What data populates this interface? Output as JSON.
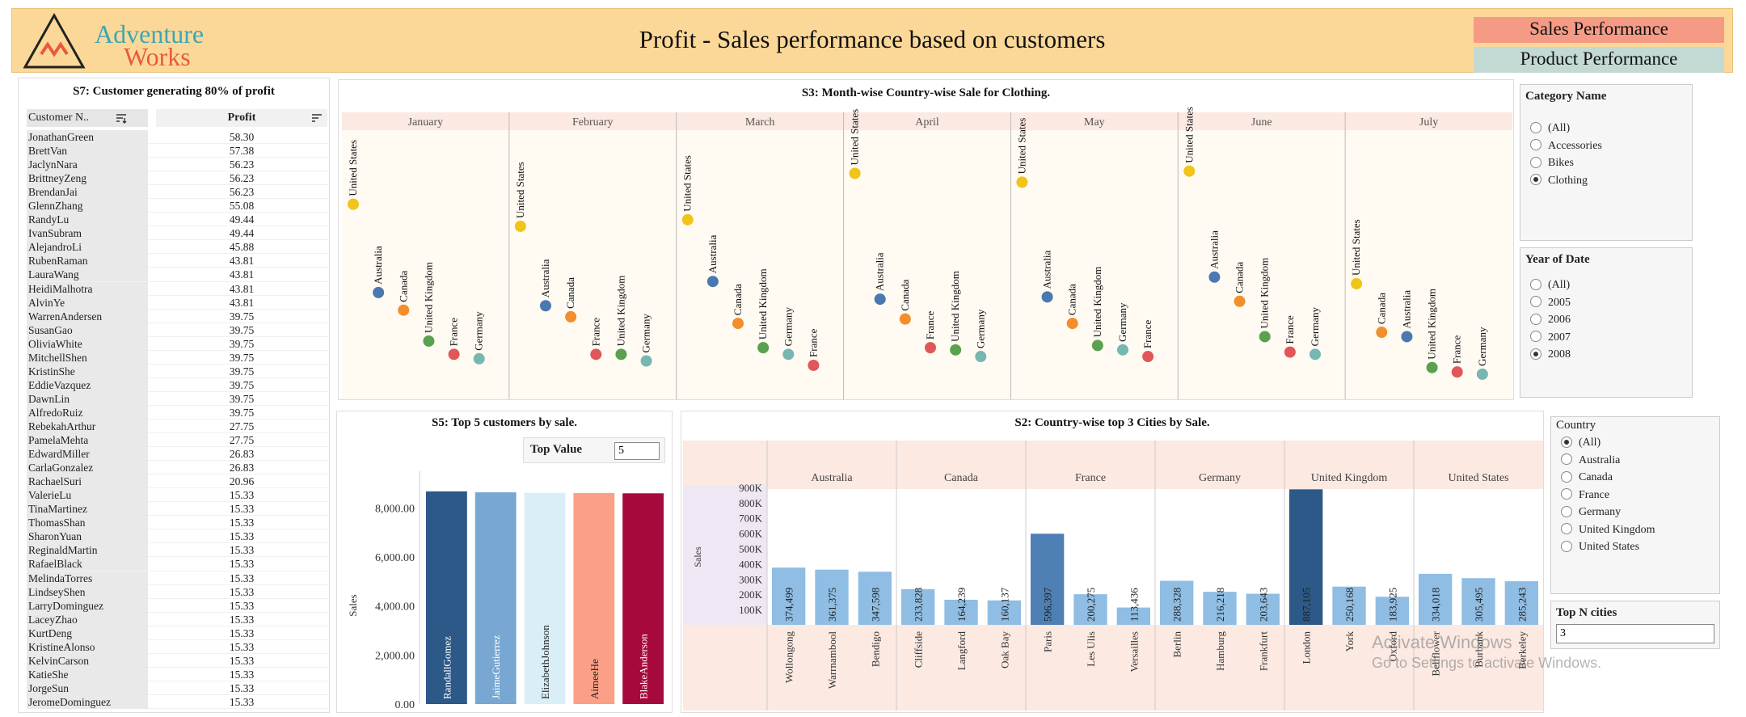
{
  "header": {
    "logo_text": "Adventure Works",
    "title": "Profit - Sales performance based on customers",
    "nav": [
      {
        "label": "Sales Performance",
        "color": "#f59a85"
      },
      {
        "label": "Product Performance",
        "color": "#c3d9d4"
      }
    ]
  },
  "s7": {
    "title": "S7:  Customer generating 80% of profit",
    "col_customer": "Customer N..",
    "col_profit": "Profit",
    "rows": [
      [
        "JonathanGreen",
        "58.30"
      ],
      [
        "BrettVan",
        "57.38"
      ],
      [
        "JaclynNara",
        "56.23"
      ],
      [
        "BrittneyZeng",
        "56.23"
      ],
      [
        "BrendanJai",
        "56.23"
      ],
      [
        "GlennZhang",
        "55.08"
      ],
      [
        "RandyLu",
        "49.44"
      ],
      [
        "IvanSubram",
        "49.44"
      ],
      [
        "AlejandroLi",
        "45.88"
      ],
      [
        "RubenRaman",
        "43.81"
      ],
      [
        "LauraWang",
        "43.81"
      ],
      [
        "HeidiMalhotra",
        "43.81"
      ],
      [
        "AlvinYe",
        "43.81"
      ],
      [
        "WarrenAndersen",
        "39.75"
      ],
      [
        "SusanGao",
        "39.75"
      ],
      [
        "OliviaWhite",
        "39.75"
      ],
      [
        "MitchellShen",
        "39.75"
      ],
      [
        "KristinShe",
        "39.75"
      ],
      [
        "EddieVazquez",
        "39.75"
      ],
      [
        "DawnLin",
        "39.75"
      ],
      [
        "AlfredoRuiz",
        "39.75"
      ],
      [
        "RebekahArthur",
        "27.75"
      ],
      [
        "PamelaMehta",
        "27.75"
      ],
      [
        "EdwardMiller",
        "26.83"
      ],
      [
        "CarlaGonzalez",
        "26.83"
      ],
      [
        "RachaelSuri",
        "20.96"
      ],
      [
        "ValerieLu",
        "15.33"
      ],
      [
        "TinaMartinez",
        "15.33"
      ],
      [
        "ThomasShan",
        "15.33"
      ],
      [
        "SharonYuan",
        "15.33"
      ],
      [
        "ReginaldMartin",
        "15.33"
      ],
      [
        "RafaelBlack",
        "15.33"
      ],
      [
        "MelindaTorres",
        "15.33"
      ],
      [
        "LindseyShen",
        "15.33"
      ],
      [
        "LarryDominguez",
        "15.33"
      ],
      [
        "LaceyZhao",
        "15.33"
      ],
      [
        "KurtDeng",
        "15.33"
      ],
      [
        "KristineAlonso",
        "15.33"
      ],
      [
        "KelvinCarson",
        "15.33"
      ],
      [
        "KatieShe",
        "15.33"
      ],
      [
        "JorgeSun",
        "15.33"
      ],
      [
        "JeromeDominguez",
        "15.33"
      ]
    ]
  },
  "filters": {
    "category": {
      "title": "Category Name",
      "options": [
        "(All)",
        "Accessories",
        "Bikes",
        "Clothing"
      ],
      "selected": "Clothing"
    },
    "year": {
      "title": "Year of Date",
      "options": [
        "(All)",
        "2005",
        "2006",
        "2007",
        "2008"
      ],
      "selected": "2008"
    },
    "country": {
      "title": "Country",
      "options": [
        "(All)",
        "Australia",
        "Canada",
        "France",
        "Germany",
        "United Kingdom",
        "United States"
      ],
      "selected": "(All)"
    },
    "top_n": {
      "title": "Top N cities",
      "value": "3"
    },
    "top_value": {
      "title": "Top Value",
      "value": "5"
    }
  },
  "watermark": {
    "line1": "Activate Windows",
    "line2": "Go to Settings to activate Windows."
  },
  "chart_data": [
    {
      "id": "s3",
      "type": "scatter",
      "title": "S3: Month-wise Country-wise Sale for Clothing.",
      "months": [
        "January",
        "February",
        "March",
        "April",
        "May",
        "June",
        "July"
      ],
      "country_colors": {
        "United States": "#f0c419",
        "Australia": "#4a78b0",
        "Canada": "#f28e2b",
        "United Kingdom": "#59a14f",
        "France": "#e15759",
        "Germany": "#76b7b2"
      },
      "points": [
        [
          [
            "United States",
            0.84
          ],
          [
            "Australia",
            0.44
          ],
          [
            "Canada",
            0.36
          ],
          [
            "United Kingdom",
            0.22
          ],
          [
            "France",
            0.16
          ],
          [
            "Germany",
            0.14
          ]
        ],
        [
          [
            "United States",
            0.74
          ],
          [
            "Australia",
            0.38
          ],
          [
            "Canada",
            0.33
          ],
          [
            "France",
            0.16
          ],
          [
            "United Kingdom",
            0.16
          ],
          [
            "Germany",
            0.13
          ]
        ],
        [
          [
            "United States",
            0.77
          ],
          [
            "Australia",
            0.49
          ],
          [
            "Canada",
            0.3
          ],
          [
            "United Kingdom",
            0.19
          ],
          [
            "Germany",
            0.16
          ],
          [
            "France",
            0.11
          ]
        ],
        [
          [
            "United States",
            0.98
          ],
          [
            "Australia",
            0.41
          ],
          [
            "Canada",
            0.32
          ],
          [
            "France",
            0.19
          ],
          [
            "United Kingdom",
            0.18
          ],
          [
            "Germany",
            0.15
          ]
        ],
        [
          [
            "United States",
            0.94
          ],
          [
            "Australia",
            0.42
          ],
          [
            "Canada",
            0.3
          ],
          [
            "United Kingdom",
            0.2
          ],
          [
            "Germany",
            0.18
          ],
          [
            "France",
            0.15
          ]
        ],
        [
          [
            "United States",
            0.99
          ],
          [
            "Australia",
            0.51
          ],
          [
            "Canada",
            0.4
          ],
          [
            "United Kingdom",
            0.24
          ],
          [
            "France",
            0.17
          ],
          [
            "Germany",
            0.16
          ]
        ],
        [
          [
            "United States",
            0.48
          ],
          [
            "Canada",
            0.26
          ],
          [
            "Australia",
            0.24
          ],
          [
            "United Kingdom",
            0.1
          ],
          [
            "France",
            0.08
          ],
          [
            "Germany",
            0.07
          ]
        ]
      ]
    },
    {
      "id": "s5",
      "type": "bar",
      "title": "S5: Top 5 customers by sale.",
      "ylabel": "Sales",
      "ylim": [
        0,
        9500
      ],
      "yticks": [
        "0.00",
        "2,000.00",
        "4,000.00",
        "6,000.00",
        "8,000.00"
      ],
      "ytick_values": [
        0,
        2000,
        4000,
        6000,
        8000
      ],
      "categories": [
        "RandallGomez",
        "JaimeGutierrez",
        "ElizabethJohnson",
        "AimeeHe",
        "BlakeAnderson"
      ],
      "values": [
        8680,
        8640,
        8620,
        8610,
        8600
      ],
      "colors": [
        "#2c5987",
        "#77a7d2",
        "#daeef8",
        "#fb9f86",
        "#a6093b"
      ]
    },
    {
      "id": "s2",
      "type": "bar",
      "title": "S2: Country-wise top 3 Cities by Sale.",
      "ylabel": "Sales",
      "ylim": [
        0,
        910000
      ],
      "yticks": [
        "100K",
        "200K",
        "300K",
        "400K",
        "500K",
        "600K",
        "700K",
        "800K",
        "900K"
      ],
      "ytick_values": [
        100000,
        200000,
        300000,
        400000,
        500000,
        600000,
        700000,
        800000,
        900000
      ],
      "groups": [
        {
          "country": "Australia",
          "cities": [
            "Wollongong",
            "Warrnambool",
            "Bendigo"
          ],
          "values": [
            374499,
            361375,
            347598
          ],
          "labels": [
            "374,499",
            "361,375",
            "347,598"
          ]
        },
        {
          "country": "Canada",
          "cities": [
            "Cliffside",
            "Langford",
            "Oak Bay"
          ],
          "values": [
            233828,
            164239,
            160137
          ],
          "labels": [
            "233,828",
            "164,239",
            "160,137"
          ]
        },
        {
          "country": "France",
          "cities": [
            "Paris",
            "Les Ulis",
            "Versailles"
          ],
          "values": [
            596397,
            200275,
            113436
          ],
          "labels": [
            "596,397",
            "200,275",
            "113,436"
          ]
        },
        {
          "country": "Germany",
          "cities": [
            "Berlin",
            "Hamburg",
            "Frankfurt"
          ],
          "values": [
            288328,
            216218,
            203643
          ],
          "labels": [
            "288,328",
            "216,218",
            "203,643"
          ]
        },
        {
          "country": "United Kingdom",
          "cities": [
            "London",
            "York",
            "Oxford"
          ],
          "values": [
            887105,
            250168,
            183925
          ],
          "labels": [
            "887,105",
            "250,168",
            "183,925"
          ]
        },
        {
          "country": "United States",
          "cities": [
            "Bellflower",
            "Burbank",
            "Berkeley"
          ],
          "values": [
            334018,
            305495,
            285243
          ],
          "labels": [
            "334,018",
            "305,495",
            "285,243"
          ]
        }
      ]
    }
  ]
}
